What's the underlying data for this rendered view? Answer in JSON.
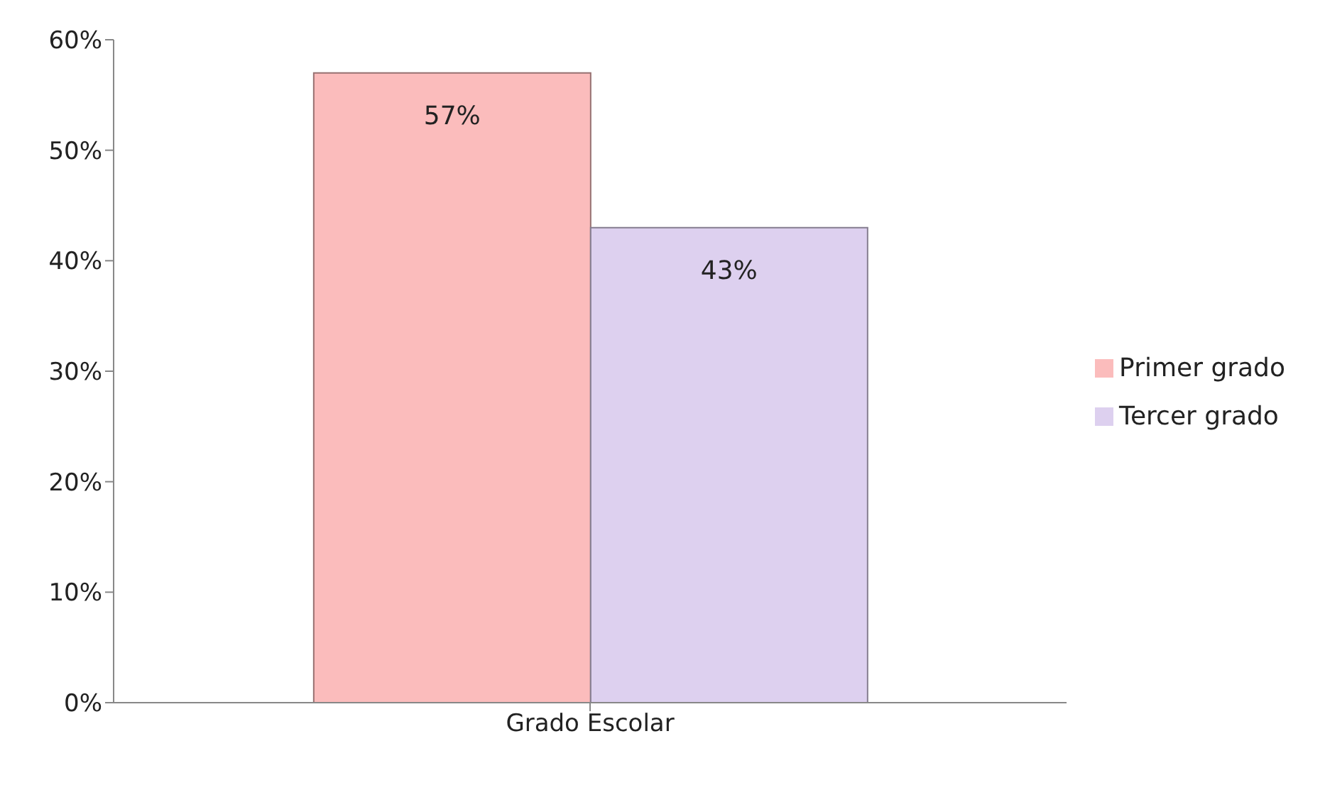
{
  "chart_data": {
    "type": "bar",
    "categories": [
      "Grado Escolar"
    ],
    "series": [
      {
        "name": "Primer grado",
        "color": "#fbbcbc",
        "values": [
          57
        ],
        "value_labels": [
          "57%"
        ]
      },
      {
        "name": "Tercer grado",
        "color": "#ddd0ef",
        "values": [
          43
        ],
        "value_labels": [
          "43%"
        ]
      }
    ],
    "ylim": [
      0,
      60
    ],
    "yticks": [
      {
        "value": 0,
        "label": "0%"
      },
      {
        "value": 10,
        "label": "10%"
      },
      {
        "value": 20,
        "label": "20%"
      },
      {
        "value": 30,
        "label": "30%"
      },
      {
        "value": 40,
        "label": "40%"
      },
      {
        "value": 50,
        "label": "50%"
      },
      {
        "value": 60,
        "label": "60%"
      }
    ],
    "grid": false,
    "legend": "right"
  }
}
